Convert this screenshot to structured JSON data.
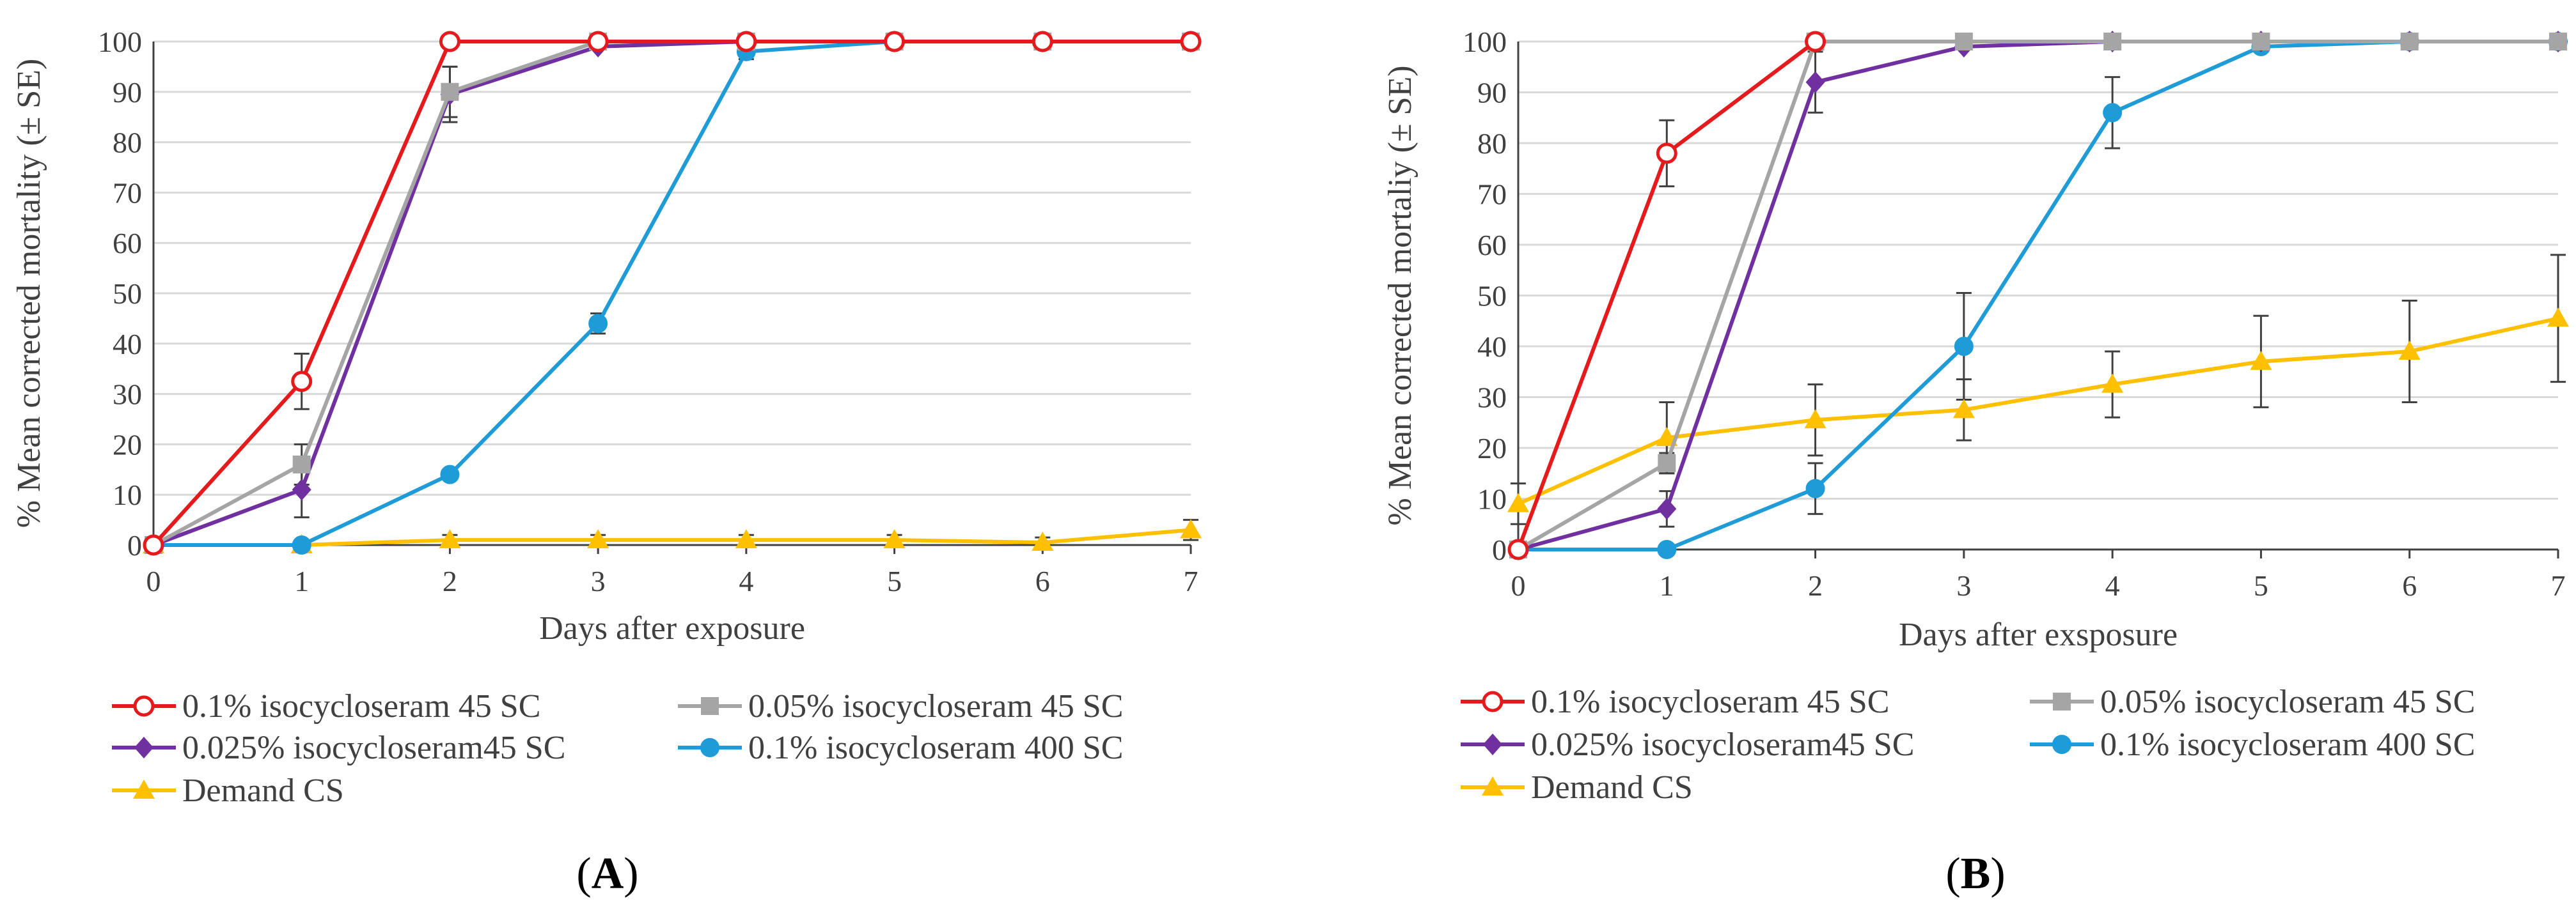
{
  "colors": {
    "red": "#E41A1C",
    "gray": "#A5A5A5",
    "purple": "#7030A0",
    "blue": "#1F9BD7",
    "yellow": "#FFC000",
    "grid": "#D9D9D9",
    "axis": "#404040",
    "errorbar": "#404040"
  },
  "chart_data": [
    {
      "panel": "A",
      "type": "line",
      "ylabel": "% Mean corrected mortality (± SE)",
      "xlabel": "Days after exposure",
      "x": [
        0,
        1,
        2,
        3,
        4,
        5,
        6,
        7
      ],
      "xlim": [
        0,
        7
      ],
      "ylim": [
        0,
        100
      ],
      "yticks": [
        0,
        10,
        20,
        30,
        40,
        50,
        60,
        70,
        80,
        90,
        100
      ],
      "grid": true,
      "legend_position": "bottom",
      "series": [
        {
          "name": "0.1% isocycloseram 45 SC",
          "color": "red",
          "marker": "open-circle",
          "x": [
            0,
            1,
            2,
            3,
            4,
            5,
            6,
            7
          ],
          "values": [
            0,
            32.5,
            100,
            100,
            100,
            100,
            100,
            100
          ],
          "errors": [
            0,
            5.5,
            0,
            0,
            0,
            0,
            0,
            0
          ]
        },
        {
          "name": "0.05% isocycloseram 45 SC",
          "color": "gray",
          "marker": "square",
          "x": [
            0,
            1,
            2,
            3,
            4,
            5,
            6,
            7
          ],
          "values": [
            0,
            16,
            90,
            100,
            100,
            100,
            100,
            100
          ],
          "errors": [
            0,
            4,
            5,
            0,
            0,
            0,
            0,
            0
          ]
        },
        {
          "name": "0.025% isocycloseram45 SC",
          "color": "purple",
          "marker": "diamond",
          "x": [
            0,
            1,
            2,
            3,
            4,
            5,
            6,
            7
          ],
          "values": [
            0,
            11,
            89.5,
            99,
            100,
            100,
            100,
            100
          ],
          "errors": [
            0,
            5.5,
            5.5,
            0.5,
            0,
            0,
            0,
            0
          ]
        },
        {
          "name": "0.1% isocycloseram 400 SC",
          "color": "blue",
          "marker": "circle",
          "x": [
            0,
            1,
            2,
            3,
            4,
            5,
            6,
            7
          ],
          "values": [
            0,
            0,
            14,
            44,
            98,
            100,
            100,
            100
          ],
          "errors": [
            0,
            0,
            0,
            2,
            1.5,
            0,
            0,
            0
          ]
        },
        {
          "name": "Demand CS",
          "color": "yellow",
          "marker": "triangle",
          "x": [
            0,
            1,
            2,
            3,
            4,
            5,
            6,
            7
          ],
          "values": [
            0,
            0,
            1,
            1,
            1,
            1,
            0.5,
            3
          ],
          "errors": [
            0,
            0,
            1,
            1,
            1,
            1,
            1,
            2
          ]
        }
      ]
    },
    {
      "panel": "B",
      "type": "line",
      "ylabel": "% Mean corrected mortaliy (± SE)",
      "xlabel": "Days after exsposure",
      "x": [
        0,
        1,
        2,
        3,
        4,
        5,
        6,
        7
      ],
      "xlim": [
        0,
        7
      ],
      "ylim": [
        0,
        100
      ],
      "yticks": [
        0,
        10,
        20,
        30,
        40,
        50,
        60,
        70,
        80,
        90,
        100
      ],
      "grid": true,
      "legend_position": "bottom",
      "series": [
        {
          "name": "0.1% isocycloseram 45 SC",
          "color": "red",
          "marker": "open-circle",
          "x": [
            0,
            1,
            2
          ],
          "values": [
            0,
            78,
            100
          ],
          "errors": [
            0,
            6.5,
            0
          ]
        },
        {
          "name": "0.05% isocycloseram 45 SC",
          "color": "gray",
          "marker": "square",
          "x": [
            0,
            1,
            2,
            3,
            4,
            5,
            6,
            7
          ],
          "values": [
            0,
            17,
            100,
            100,
            100,
            100,
            100,
            100
          ],
          "errors": [
            0,
            2,
            0,
            0,
            0,
            0,
            0,
            0
          ]
        },
        {
          "name": "0.025% isocycloseram45 SC",
          "color": "purple",
          "marker": "diamond",
          "x": [
            0,
            1,
            2,
            3,
            4,
            5,
            6,
            7
          ],
          "values": [
            0,
            8,
            92,
            99,
            100,
            100,
            100,
            100
          ],
          "errors": [
            0,
            3.5,
            6,
            0.5,
            0,
            0,
            0,
            0
          ]
        },
        {
          "name": "0.1% isocycloseram 400 SC",
          "color": "blue",
          "marker": "circle",
          "x": [
            0,
            1,
            2,
            3,
            4,
            5,
            6,
            7
          ],
          "values": [
            0,
            0,
            12,
            40,
            86,
            99,
            100,
            100
          ],
          "errors": [
            0,
            0,
            5,
            10.5,
            7,
            0.5,
            0,
            0
          ]
        },
        {
          "name": "Demand CS",
          "color": "yellow",
          "marker": "triangle",
          "x": [
            0,
            1,
            2,
            3,
            4,
            5,
            6,
            7
          ],
          "values": [
            9,
            22,
            25.5,
            27.5,
            32.5,
            37,
            39,
            45.5
          ],
          "errors": [
            4,
            7,
            7,
            6,
            6.5,
            9,
            10,
            12.5
          ]
        }
      ]
    }
  ],
  "legend_order": [
    0,
    1,
    2,
    3,
    4
  ],
  "panel_labels": {
    "A": "A",
    "B": "B"
  }
}
